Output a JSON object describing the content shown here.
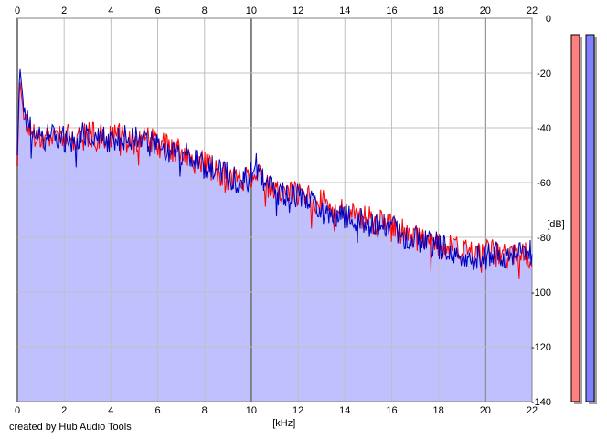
{
  "credit": "created by Hub Audio Tools",
  "colors": {
    "background": "#ffffff",
    "fill": "#c0c0ff",
    "channel_left": "#ff0000",
    "channel_right": "#0000c0",
    "grid_major": "#808080",
    "grid_minor": "#c0c0c0",
    "meter_left": "#ff8080",
    "meter_right": "#8080ff",
    "meter_shadow": "#a0a0a0"
  },
  "chart_data": {
    "type": "area",
    "title": "",
    "xlabel": "[kHz]",
    "ylabel": "[dB]",
    "xlim": [
      0,
      22
    ],
    "ylim": [
      -140,
      0
    ],
    "x_ticks": [
      0,
      2,
      4,
      6,
      8,
      10,
      12,
      14,
      16,
      18,
      20,
      22
    ],
    "y_ticks": [
      0,
      -20,
      -40,
      -60,
      -80,
      -100,
      -120,
      -140
    ],
    "grid": true,
    "x_ticks_top_and_bottom": true,
    "y_ticks_side": "right",
    "x": [
      0.0,
      0.1,
      0.2,
      0.3,
      0.5,
      0.75,
      1.0,
      1.5,
      2.0,
      2.5,
      3.0,
      3.5,
      4.0,
      4.5,
      5.0,
      5.5,
      6.0,
      6.5,
      7.0,
      7.5,
      8.0,
      8.5,
      9.0,
      9.5,
      10.0,
      10.2,
      10.5,
      10.8,
      11.0,
      11.5,
      12.0,
      12.5,
      13.0,
      13.5,
      14.0,
      14.5,
      15.0,
      15.5,
      16.0,
      16.5,
      17.0,
      17.5,
      18.0,
      18.5,
      19.0,
      19.5,
      20.0,
      20.5,
      21.0,
      21.5,
      22.0
    ],
    "series": [
      {
        "values": [
          -54,
          -22,
          -30,
          -36,
          -40,
          -42,
          -44,
          -42,
          -43,
          -45,
          -42,
          -43,
          -44,
          -43,
          -45,
          -44,
          -46,
          -47,
          -49,
          -52,
          -53,
          -56,
          -58,
          -59,
          -57,
          -55,
          -59,
          -63,
          -64,
          -63,
          -64,
          -66,
          -67,
          -70,
          -71,
          -72,
          -73,
          -75,
          -76,
          -78,
          -80,
          -81,
          -82,
          -84,
          -85,
          -86,
          -85,
          -86,
          -87,
          -86,
          -87
        ]
      },
      {
        "values": [
          -50,
          -17,
          -26,
          -34,
          -40,
          -43,
          -44,
          -43,
          -44,
          -44,
          -42,
          -44,
          -45,
          -44,
          -44,
          -45,
          -47,
          -48,
          -50,
          -51,
          -54,
          -55,
          -57,
          -60,
          -56,
          -53,
          -58,
          -62,
          -65,
          -64,
          -65,
          -67,
          -68,
          -71,
          -72,
          -73,
          -74,
          -76,
          -77,
          -79,
          -81,
          -82,
          -83,
          -85,
          -86,
          -87,
          -87,
          -85,
          -88,
          -86,
          -86
        ]
      }
    ],
    "meters": {
      "left_top_db": -6,
      "right_top_db": -6
    }
  }
}
